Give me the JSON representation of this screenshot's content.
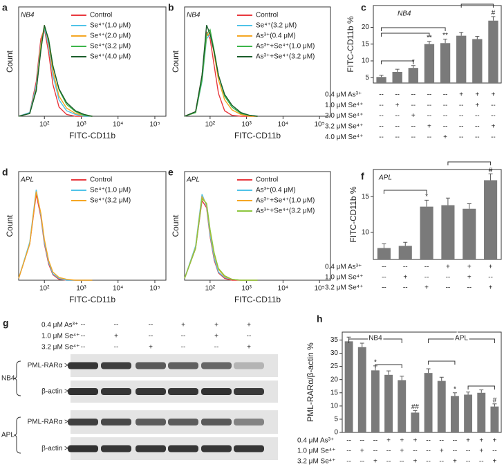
{
  "chart_data": [
    {
      "type": "line",
      "panel": "a",
      "annotation": "NB4",
      "xlabel": "FITC-CD11b",
      "ylabel": "Count",
      "xscale": "log",
      "xlim": [
        20,
        200000
      ],
      "xticks": [
        {
          "value": 100,
          "label": "10²"
        },
        {
          "value": 1000,
          "label": "10³"
        },
        {
          "value": 10000,
          "label": "10⁴"
        },
        {
          "value": 100000,
          "label": "10⁵"
        }
      ],
      "ylim": [
        0,
        120
      ],
      "x": [
        20,
        40,
        60,
        80,
        100,
        130,
        170,
        250,
        400,
        700,
        1200,
        2000
      ],
      "series": [
        {
          "name": "Control",
          "color": "#e8383d",
          "values": [
            0,
            4,
            38,
            85,
            96,
            70,
            35,
            10,
            2,
            0,
            0,
            0
          ]
        },
        {
          "name": "Se⁴⁺(1.0 μM)",
          "color": "#4fc3e8",
          "values": [
            0,
            4,
            34,
            80,
            97,
            78,
            45,
            18,
            6,
            2,
            0,
            0
          ]
        },
        {
          "name": "Se⁴⁺(2.0 μM)",
          "color": "#f5a623",
          "values": [
            0,
            3,
            30,
            78,
            100,
            82,
            50,
            22,
            9,
            3,
            1,
            0
          ]
        },
        {
          "name": "Se⁴⁺(3.2 μM)",
          "color": "#3cb54a",
          "values": [
            0,
            3,
            28,
            74,
            98,
            85,
            56,
            29,
            13,
            5,
            1,
            0
          ]
        },
        {
          "name": "Se⁴⁺(4.0 μM)",
          "color": "#1a5c2a",
          "values": [
            0,
            3,
            28,
            72,
            100,
            84,
            55,
            30,
            15,
            6,
            2,
            0
          ]
        }
      ]
    },
    {
      "type": "line",
      "panel": "b",
      "annotation": "NB4",
      "xlabel": "FITC-CD11b",
      "ylabel": "Count",
      "xscale": "log",
      "xlim": [
        20,
        200000
      ],
      "xticks": [
        {
          "value": 100,
          "label": "10²"
        },
        {
          "value": 1000,
          "label": "10³"
        },
        {
          "value": 10000,
          "label": "10⁴"
        },
        {
          "value": 100000,
          "label": "10⁵"
        }
      ],
      "ylim": [
        0,
        120
      ],
      "x": [
        20,
        40,
        60,
        80,
        100,
        130,
        170,
        250,
        400,
        700,
        1200,
        2000
      ],
      "series": [
        {
          "name": "Control",
          "color": "#e8383d",
          "values": [
            0,
            5,
            45,
            92,
            85,
            55,
            25,
            6,
            1,
            0,
            0,
            0
          ]
        },
        {
          "name": "Se⁴⁺(3.2 μM)",
          "color": "#4fc3e8",
          "values": [
            0,
            4,
            38,
            85,
            90,
            70,
            45,
            22,
            10,
            3,
            1,
            0
          ]
        },
        {
          "name": "As³⁺(0.4 μM)",
          "color": "#f5a623",
          "values": [
            0,
            4,
            40,
            88,
            92,
            68,
            40,
            18,
            7,
            2,
            0,
            0
          ]
        },
        {
          "name": "As³⁺+Se⁴⁺(1.0 μM)",
          "color": "#3cb54a",
          "values": [
            0,
            4,
            40,
            90,
            95,
            72,
            45,
            22,
            10,
            3,
            1,
            0
          ]
        },
        {
          "name": "As³⁺+Se⁴⁺(3.2 μM)",
          "color": "#1a5c2a",
          "values": [
            0,
            5,
            45,
            100,
            90,
            70,
            45,
            24,
            12,
            4,
            1,
            0
          ]
        }
      ]
    },
    {
      "type": "bar",
      "panel": "c",
      "annotation": "NB4",
      "ylabel": "FITC-CD11b %",
      "color": "#7a7a7a",
      "ylim": [
        3.4,
        26.5
      ],
      "yticks": [
        5,
        10,
        15,
        20
      ],
      "values": [
        5.2,
        6.7,
        7.9,
        15.0,
        15.3,
        17.5,
        16.5,
        22.0
      ],
      "errors": [
        0.5,
        0.8,
        0.7,
        0.8,
        1.2,
        1.0,
        0.8,
        1.2
      ],
      "significance": [
        null,
        null,
        "*",
        "**",
        "**",
        null,
        null,
        "#"
      ],
      "conditions": {
        "labels": [
          "0.4 μM As³⁺",
          "1.0 μM Se⁴⁺",
          "2.0 μM Se⁴⁺",
          "3.2 μM Se⁴⁺",
          "4.0 μM Se⁴⁺"
        ],
        "rows": [
          [
            "--",
            "--",
            "--",
            "--",
            "--",
            "+",
            "+",
            "+"
          ],
          [
            "--",
            "+",
            "--",
            "--",
            "--",
            "--",
            "+",
            "--"
          ],
          [
            "--",
            "--",
            "+",
            "--",
            "--",
            "--",
            "--",
            "--"
          ],
          [
            "--",
            "--",
            "--",
            "+",
            "--",
            "--",
            "--",
            "+"
          ],
          [
            "--",
            "--",
            "--",
            "--",
            "+",
            "--",
            "--",
            "--"
          ]
        ]
      }
    },
    {
      "type": "line",
      "panel": "d",
      "annotation": "APL",
      "xlabel": "FITC-CD11b",
      "ylabel": "Count",
      "xscale": "log",
      "xlim": [
        20,
        200000
      ],
      "xticks": [
        {
          "value": 100,
          "label": "10²"
        },
        {
          "value": 1000,
          "label": "10³"
        },
        {
          "value": 10000,
          "label": "10⁴"
        },
        {
          "value": 100000,
          "label": "10⁵"
        }
      ],
      "ylim": [
        0,
        120
      ],
      "x": [
        20,
        40,
        60,
        80,
        100,
        130,
        170,
        250,
        400,
        700,
        1200,
        2000
      ],
      "series": [
        {
          "name": "Control",
          "color": "#e8383d",
          "values": [
            2,
            40,
            95,
            70,
            40,
            18,
            6,
            1,
            0,
            0,
            0,
            0
          ]
        },
        {
          "name": "Se⁴⁺(1.0 μM)",
          "color": "#4fc3e8",
          "values": [
            2,
            42,
            100,
            72,
            42,
            20,
            7,
            2,
            0,
            0,
            0,
            0
          ]
        },
        {
          "name": "Se⁴⁺(3.2 μM)",
          "color": "#f5a623",
          "values": [
            2,
            40,
            98,
            74,
            45,
            22,
            9,
            3,
            1,
            0,
            0,
            0
          ]
        }
      ]
    },
    {
      "type": "line",
      "panel": "e",
      "annotation": "APL",
      "xlabel": "FITC-CD11b",
      "ylabel": "Count",
      "xscale": "log",
      "xlim": [
        20,
        200000
      ],
      "xticks": [
        {
          "value": 100,
          "label": "10²"
        },
        {
          "value": 1000,
          "label": "10³"
        },
        {
          "value": 10000,
          "label": "10⁴"
        },
        {
          "value": 100000,
          "label": "10⁵"
        }
      ],
      "ylim": [
        0,
        120
      ],
      "x": [
        20,
        40,
        60,
        80,
        100,
        130,
        170,
        250,
        400,
        700,
        1200,
        2000
      ],
      "series": [
        {
          "name": "Control",
          "color": "#e8383d",
          "values": [
            2,
            35,
            88,
            80,
            48,
            22,
            8,
            2,
            0,
            0,
            0,
            0
          ]
        },
        {
          "name": "As³⁺(0.4 μM)",
          "color": "#4fc3e8",
          "values": [
            2,
            38,
            95,
            82,
            50,
            24,
            9,
            3,
            1,
            0,
            0,
            0
          ]
        },
        {
          "name": "As³⁺+Se⁴⁺(1.0 μM)",
          "color": "#f5a623",
          "values": [
            2,
            36,
            92,
            84,
            54,
            28,
            12,
            4,
            1,
            0,
            0,
            0
          ]
        },
        {
          "name": "As³⁺+Se⁴⁺(3.2 μM)",
          "color": "#8cc63f",
          "values": [
            2,
            35,
            90,
            85,
            56,
            30,
            13,
            5,
            1,
            0,
            0,
            0
          ]
        }
      ]
    },
    {
      "type": "bar",
      "panel": "f",
      "annotation": "APL",
      "ylabel": "FITC-CD11b %",
      "color": "#7a7a7a",
      "ylim": [
        6.2,
        18.8
      ],
      "yticks": [
        10,
        15
      ],
      "values": [
        7.8,
        8.1,
        13.6,
        13.8,
        13.3,
        17.3
      ],
      "errors": [
        0.6,
        0.5,
        0.9,
        1.0,
        0.7,
        0.9
      ],
      "significance": [
        null,
        null,
        "*",
        null,
        null,
        "#"
      ],
      "conditions": {
        "labels": [
          "0.4 μM As³⁺",
          "1.0 μM Se⁴⁺",
          "3.2 μM Se⁴⁺"
        ],
        "rows": [
          [
            "--",
            "--",
            "--",
            "+",
            "+",
            "+"
          ],
          [
            "--",
            "+",
            "--",
            "--",
            "+",
            "--"
          ],
          [
            "--",
            "--",
            "+",
            "--",
            "--",
            "+"
          ]
        ]
      }
    },
    {
      "type": "bar",
      "panel": "h",
      "ylabel": "PML-RARα/β-actin %",
      "color": "#7a7a7a",
      "groups": [
        "NB4",
        "APL"
      ],
      "ylim": [
        0,
        38
      ],
      "yticks": [
        0,
        5,
        10,
        15,
        20,
        25,
        30,
        35
      ],
      "values": [
        34.5,
        32.3,
        23.5,
        21.8,
        19.8,
        7.5,
        22.5,
        19.5,
        13.8,
        14.3,
        15.0,
        9.8
      ],
      "errors": [
        1.6,
        1.5,
        1.7,
        1.5,
        1.5,
        0.8,
        1.6,
        1.4,
        1.2,
        1.0,
        1.1,
        1.0
      ],
      "significance": [
        null,
        null,
        "*",
        null,
        null,
        "##",
        null,
        null,
        "*",
        null,
        null,
        "#"
      ],
      "conditions": {
        "labels": [
          "0.4 μM As³⁺",
          "1.0 μM Se⁴⁺",
          "3.2 μM Se⁴⁺"
        ],
        "rows": [
          [
            "--",
            "--",
            "--",
            "+",
            "+",
            "+",
            "--",
            "--",
            "--",
            "+",
            "+",
            "+"
          ],
          [
            "--",
            "+",
            "--",
            "--",
            "+",
            "--",
            "--",
            "+",
            "--",
            "--",
            "+",
            "--"
          ],
          [
            "--",
            "--",
            "+",
            "--",
            "--",
            "+",
            "--",
            "--",
            "+",
            "--",
            "--",
            "+"
          ]
        ]
      }
    }
  ],
  "blot": {
    "panel": "g",
    "conditions": {
      "labels": [
        "0.4 μM As³⁺",
        "1.0 μM Se⁴⁺",
        "3.2 μM Se⁴⁺"
      ],
      "rows": [
        [
          "--",
          "--",
          "--",
          "+",
          "+",
          "+"
        ],
        [
          "--",
          "+",
          "--",
          "--",
          "+",
          "--"
        ],
        [
          "--",
          "--",
          "+",
          "--",
          "--",
          "+"
        ]
      ]
    },
    "groups": [
      {
        "name": "NB4",
        "bands": [
          "PML-RARα >",
          "β-actin >"
        ]
      },
      {
        "name": "APL",
        "bands": [
          "PML-RARα >",
          "β-actin >"
        ]
      }
    ]
  }
}
